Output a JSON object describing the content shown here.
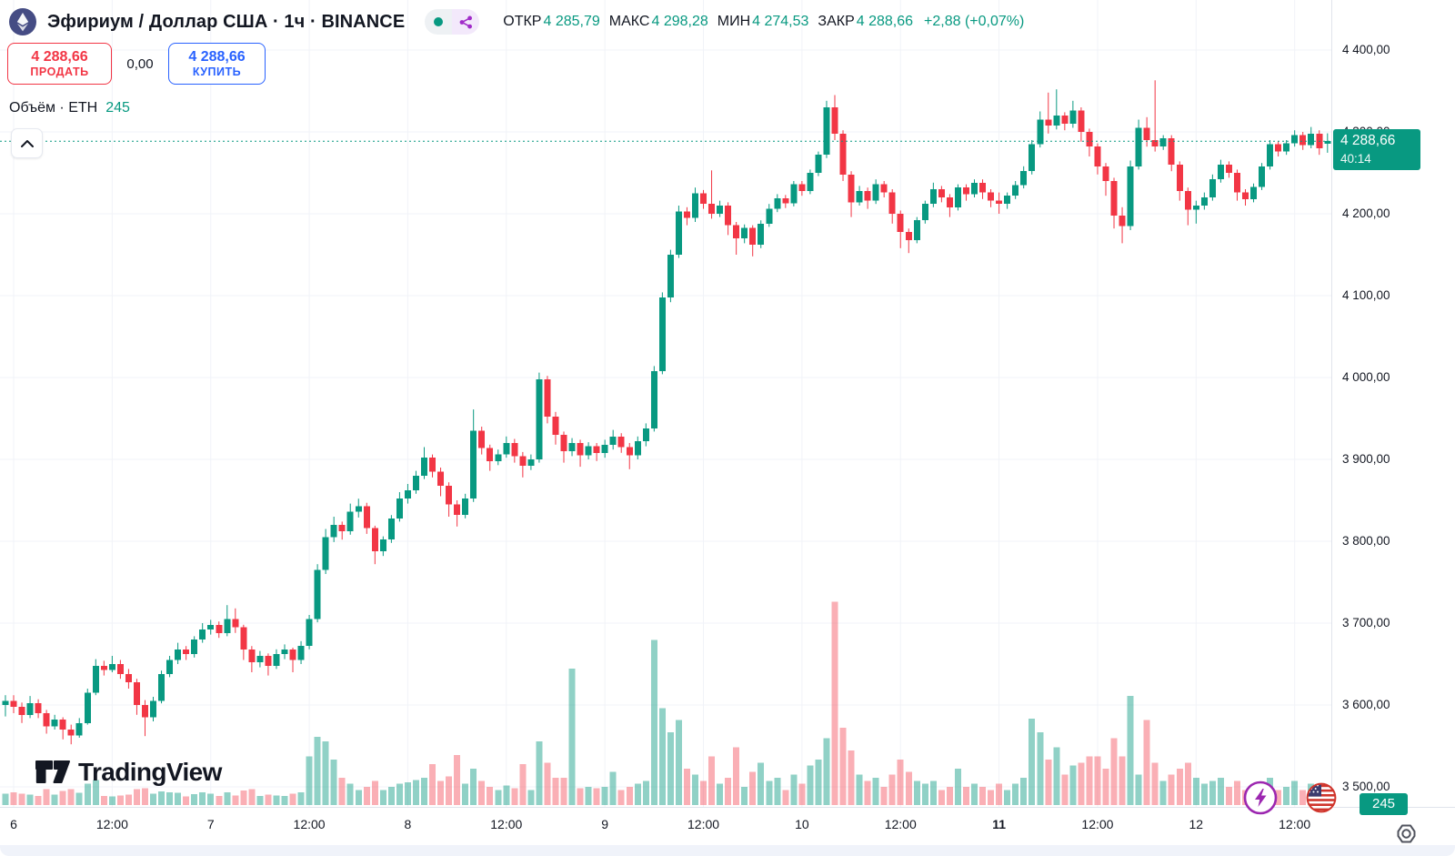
{
  "header": {
    "title": "Эфириум / Доллар США · 1ч · BINANCE",
    "ohlc": [
      {
        "label": "ОТКР",
        "value": "4 285,79"
      },
      {
        "label": "МАКС",
        "value": "4 298,28"
      },
      {
        "label": "МИН",
        "value": "4 274,53"
      },
      {
        "label": "ЗАКР",
        "value": "4 288,66"
      }
    ],
    "change": "+2,88 (+0,07%)"
  },
  "trade_panel": {
    "sell": {
      "price": "4 288,66",
      "label": "ПРОДАТЬ"
    },
    "spread": "0,00",
    "buy": {
      "price": "4 288,66",
      "label": "КУПИТЬ"
    }
  },
  "volume_legend": {
    "label": "Объём · ETH",
    "value": "245"
  },
  "price_badge": {
    "price": "4 288,66",
    "countdown": "40:14"
  },
  "volume_axis_badge": "245",
  "branding": {
    "name": "TradingView"
  },
  "colors": {
    "up": "#089981",
    "down": "#f23645",
    "vol_up": "rgba(8,153,129,0.45)",
    "vol_down": "rgba(242,54,69,0.40)",
    "buy_blue": "#2962ff",
    "sell_red": "#f23645",
    "grid": "#f1f3f8",
    "axis_text": "#131722",
    "purple": "#9c27b0"
  },
  "chart_data": {
    "type": "candlestick",
    "title": "Эфириум / Доллар США",
    "interval": "1ч",
    "exchange": "BINANCE",
    "price_axis": {
      "min": 3500,
      "max": 4400,
      "step": 100,
      "labels": [
        {
          "value": 4400,
          "text": "4 400,00"
        },
        {
          "value": 4300,
          "text": "4 300,00"
        },
        {
          "value": 4200,
          "text": "4 200,00"
        },
        {
          "value": 4100,
          "text": "4 100,00"
        },
        {
          "value": 4000,
          "text": "4 000,00"
        },
        {
          "value": 3900,
          "text": "3 900,00"
        },
        {
          "value": 3800,
          "text": "3 800,00"
        },
        {
          "value": 3700,
          "text": "3 700,00"
        },
        {
          "value": 3600,
          "text": "3 600,00"
        },
        {
          "value": 3500,
          "text": "3 500,00"
        }
      ]
    },
    "time_axis": {
      "labels": [
        {
          "text": "6",
          "index": 1,
          "bold": false
        },
        {
          "text": "12:00",
          "index": 13,
          "bold": false
        },
        {
          "text": "7",
          "index": 25,
          "bold": false
        },
        {
          "text": "12:00",
          "index": 37,
          "bold": false
        },
        {
          "text": "8",
          "index": 49,
          "bold": false
        },
        {
          "text": "12:00",
          "index": 61,
          "bold": false
        },
        {
          "text": "9",
          "index": 73,
          "bold": false
        },
        {
          "text": "12:00",
          "index": 85,
          "bold": false
        },
        {
          "text": "10",
          "index": 97,
          "bold": false
        },
        {
          "text": "12:00",
          "index": 109,
          "bold": false
        },
        {
          "text": "11",
          "index": 121,
          "bold": true
        },
        {
          "text": "12:00",
          "index": 133,
          "bold": false
        },
        {
          "text": "12",
          "index": 145,
          "bold": false
        },
        {
          "text": "12:00",
          "index": 157,
          "bold": false
        }
      ]
    },
    "current": {
      "price": 4288.66,
      "label": "4 288,66",
      "countdown": "40:14",
      "volume": 245
    },
    "candles": [
      [
        3600,
        3612,
        3586,
        3605,
        380
      ],
      [
        3605,
        3612,
        3590,
        3598,
        420
      ],
      [
        3598,
        3603,
        3578,
        3588,
        380
      ],
      [
        3588,
        3611,
        3584,
        3602,
        350
      ],
      [
        3602,
        3607,
        3584,
        3590,
        300
      ],
      [
        3590,
        3594,
        3565,
        3574,
        520
      ],
      [
        3574,
        3588,
        3570,
        3582,
        340
      ],
      [
        3582,
        3585,
        3558,
        3570,
        460
      ],
      [
        3570,
        3576,
        3552,
        3563,
        520
      ],
      [
        3563,
        3584,
        3560,
        3578,
        400
      ],
      [
        3578,
        3620,
        3576,
        3615,
        700
      ],
      [
        3615,
        3656,
        3612,
        3648,
        820
      ],
      [
        3648,
        3654,
        3636,
        3643,
        300
      ],
      [
        3643,
        3660,
        3640,
        3650,
        280
      ],
      [
        3650,
        3655,
        3632,
        3638,
        310
      ],
      [
        3638,
        3644,
        3620,
        3628,
        350
      ],
      [
        3628,
        3632,
        3588,
        3600,
        520
      ],
      [
        3600,
        3606,
        3562,
        3585,
        560
      ],
      [
        3585,
        3610,
        3580,
        3605,
        380
      ],
      [
        3605,
        3642,
        3602,
        3638,
        450
      ],
      [
        3638,
        3660,
        3634,
        3655,
        420
      ],
      [
        3655,
        3676,
        3650,
        3668,
        400
      ],
      [
        3668,
        3672,
        3655,
        3662,
        280
      ],
      [
        3662,
        3684,
        3658,
        3680,
        360
      ],
      [
        3680,
        3700,
        3676,
        3692,
        420
      ],
      [
        3692,
        3704,
        3686,
        3698,
        380
      ],
      [
        3698,
        3702,
        3682,
        3688,
        300
      ],
      [
        3688,
        3722,
        3684,
        3705,
        420
      ],
      [
        3705,
        3718,
        3688,
        3695,
        310
      ],
      [
        3695,
        3698,
        3655,
        3668,
        480
      ],
      [
        3668,
        3672,
        3640,
        3652,
        520
      ],
      [
        3652,
        3666,
        3646,
        3660,
        300
      ],
      [
        3660,
        3663,
        3636,
        3648,
        340
      ],
      [
        3648,
        3668,
        3644,
        3662,
        320
      ],
      [
        3662,
        3674,
        3656,
        3668,
        300
      ],
      [
        3668,
        3670,
        3640,
        3655,
        380
      ],
      [
        3655,
        3678,
        3650,
        3672,
        420
      ],
      [
        3672,
        3710,
        3668,
        3705,
        1600
      ],
      [
        3705,
        3772,
        3701,
        3765,
        2250
      ],
      [
        3765,
        3815,
        3760,
        3805,
        2100
      ],
      [
        3805,
        3830,
        3799,
        3820,
        1500
      ],
      [
        3820,
        3824,
        3802,
        3812,
        900
      ],
      [
        3812,
        3846,
        3808,
        3836,
        700
      ],
      [
        3836,
        3852,
        3829,
        3843,
        500
      ],
      [
        3843,
        3847,
        3809,
        3816,
        600
      ],
      [
        3816,
        3819,
        3772,
        3788,
        800
      ],
      [
        3788,
        3806,
        3782,
        3802,
        500
      ],
      [
        3802,
        3832,
        3798,
        3828,
        600
      ],
      [
        3828,
        3860,
        3824,
        3852,
        700
      ],
      [
        3852,
        3870,
        3846,
        3862,
        750
      ],
      [
        3862,
        3886,
        3858,
        3880,
        820
      ],
      [
        3880,
        3915,
        3876,
        3902,
        900
      ],
      [
        3902,
        3906,
        3878,
        3885,
        1350
      ],
      [
        3885,
        3890,
        3855,
        3868,
        800
      ],
      [
        3868,
        3872,
        3830,
        3845,
        950
      ],
      [
        3845,
        3850,
        3818,
        3832,
        1650
      ],
      [
        3832,
        3858,
        3828,
        3852,
        700
      ],
      [
        3852,
        3961,
        3848,
        3935,
        1200
      ],
      [
        3935,
        3940,
        3906,
        3914,
        800
      ],
      [
        3914,
        3918,
        3886,
        3898,
        600
      ],
      [
        3898,
        3912,
        3893,
        3906,
        500
      ],
      [
        3906,
        3928,
        3902,
        3920,
        650
      ],
      [
        3920,
        3925,
        3896,
        3904,
        550
      ],
      [
        3904,
        3909,
        3878,
        3892,
        1350
      ],
      [
        3892,
        3906,
        3887,
        3900,
        500
      ],
      [
        3900,
        4006,
        3896,
        3998,
        2100
      ],
      [
        3998,
        4002,
        3944,
        3952,
        1400
      ],
      [
        3952,
        3958,
        3918,
        3930,
        900
      ],
      [
        3930,
        3934,
        3896,
        3910,
        900
      ],
      [
        3910,
        3926,
        3904,
        3920,
        4500
      ],
      [
        3920,
        3924,
        3891,
        3905,
        550
      ],
      [
        3905,
        3921,
        3900,
        3916,
        600
      ],
      [
        3916,
        3920,
        3898,
        3908,
        550
      ],
      [
        3908,
        3924,
        3902,
        3918,
        600
      ],
      [
        3918,
        3936,
        3912,
        3928,
        1100
      ],
      [
        3928,
        3932,
        3908,
        3915,
        500
      ],
      [
        3915,
        3920,
        3888,
        3905,
        600
      ],
      [
        3905,
        3928,
        3900,
        3922,
        700
      ],
      [
        3922,
        3944,
        3916,
        3938,
        800
      ],
      [
        3938,
        4014,
        3934,
        4008,
        5450
      ],
      [
        4008,
        4104,
        4004,
        4098,
        3200
      ],
      [
        4098,
        4156,
        4092,
        4150,
        2400
      ],
      [
        4150,
        4210,
        4146,
        4203,
        2800
      ],
      [
        4203,
        4208,
        4186,
        4195,
        1200
      ],
      [
        4195,
        4232,
        4190,
        4225,
        1000
      ],
      [
        4225,
        4229,
        4206,
        4212,
        800
      ],
      [
        4212,
        4253,
        4194,
        4200,
        1600
      ],
      [
        4200,
        4216,
        4196,
        4210,
        700
      ],
      [
        4210,
        4214,
        4174,
        4186,
        900
      ],
      [
        4186,
        4190,
        4150,
        4170,
        1900
      ],
      [
        4170,
        4187,
        4164,
        4183,
        600
      ],
      [
        4183,
        4186,
        4148,
        4162,
        1100
      ],
      [
        4162,
        4192,
        4158,
        4188,
        1400
      ],
      [
        4188,
        4212,
        4184,
        4206,
        800
      ],
      [
        4206,
        4224,
        4202,
        4219,
        900
      ],
      [
        4219,
        4223,
        4207,
        4213,
        500
      ],
      [
        4213,
        4240,
        4209,
        4236,
        1000
      ],
      [
        4236,
        4240,
        4222,
        4228,
        700
      ],
      [
        4228,
        4254,
        4224,
        4250,
        1300
      ],
      [
        4250,
        4276,
        4246,
        4272,
        1500
      ],
      [
        4272,
        4338,
        4268,
        4330,
        2200
      ],
      [
        4330,
        4345,
        4290,
        4298,
        6700
      ],
      [
        4298,
        4302,
        4240,
        4248,
        2550
      ],
      [
        4248,
        4252,
        4196,
        4214,
        1800
      ],
      [
        4214,
        4234,
        4210,
        4228,
        1000
      ],
      [
        4228,
        4232,
        4206,
        4216,
        800
      ],
      [
        4216,
        4242,
        4212,
        4236,
        900
      ],
      [
        4236,
        4240,
        4220,
        4226,
        600
      ],
      [
        4226,
        4230,
        4188,
        4200,
        1000
      ],
      [
        4200,
        4204,
        4158,
        4178,
        1500
      ],
      [
        4178,
        4182,
        4152,
        4168,
        1100
      ],
      [
        4168,
        4196,
        4164,
        4192,
        800
      ],
      [
        4192,
        4216,
        4188,
        4212,
        700
      ],
      [
        4212,
        4238,
        4208,
        4230,
        800
      ],
      [
        4230,
        4234,
        4214,
        4220,
        500
      ],
      [
        4220,
        4224,
        4196,
        4208,
        600
      ],
      [
        4208,
        4236,
        4204,
        4232,
        1200
      ],
      [
        4232,
        4236,
        4216,
        4224,
        600
      ],
      [
        4224,
        4242,
        4220,
        4238,
        700
      ],
      [
        4238,
        4242,
        4218,
        4226,
        600
      ],
      [
        4226,
        4230,
        4208,
        4216,
        500
      ],
      [
        4216,
        4226,
        4200,
        4212,
        700
      ],
      [
        4212,
        4226,
        4206,
        4222,
        500
      ],
      [
        4222,
        4240,
        4218,
        4235,
        700
      ],
      [
        4235,
        4258,
        4231,
        4252,
        900
      ],
      [
        4252,
        4290,
        4248,
        4285,
        2850
      ],
      [
        4285,
        4325,
        4281,
        4315,
        2400
      ],
      [
        4315,
        4348,
        4298,
        4308,
        1500
      ],
      [
        4308,
        4352,
        4303,
        4320,
        1900
      ],
      [
        4320,
        4324,
        4302,
        4310,
        1000
      ],
      [
        4310,
        4338,
        4305,
        4326,
        1300
      ],
      [
        4326,
        4330,
        4288,
        4300,
        1400
      ],
      [
        4300,
        4304,
        4270,
        4282,
        1600
      ],
      [
        4282,
        4286,
        4248,
        4258,
        1600
      ],
      [
        4258,
        4262,
        4222,
        4240,
        1200
      ],
      [
        4240,
        4244,
        4182,
        4198,
        2200
      ],
      [
        4198,
        4208,
        4164,
        4185,
        1600
      ],
      [
        4185,
        4265,
        4180,
        4258,
        3600
      ],
      [
        4258,
        4315,
        4254,
        4305,
        1000
      ],
      [
        4305,
        4318,
        4282,
        4290,
        2800
      ],
      [
        4290,
        4363,
        4276,
        4282,
        1400
      ],
      [
        4282,
        4296,
        4278,
        4292,
        800
      ],
      [
        4292,
        4296,
        4252,
        4260,
        1000
      ],
      [
        4260,
        4264,
        4216,
        4228,
        1200
      ],
      [
        4228,
        4232,
        4186,
        4205,
        1400
      ],
      [
        4205,
        4216,
        4188,
        4210,
        900
      ],
      [
        4210,
        4226,
        4205,
        4220,
        700
      ],
      [
        4220,
        4248,
        4216,
        4242,
        800
      ],
      [
        4242,
        4266,
        4238,
        4260,
        900
      ],
      [
        4260,
        4264,
        4244,
        4250,
        600
      ],
      [
        4250,
        4254,
        4216,
        4226,
        800
      ],
      [
        4226,
        4230,
        4210,
        4218,
        500
      ],
      [
        4218,
        4237,
        4214,
        4233,
        600
      ],
      [
        4233,
        4262,
        4229,
        4258,
        700
      ],
      [
        4258,
        4290,
        4254,
        4285,
        900
      ],
      [
        4285,
        4289,
        4270,
        4276,
        500
      ],
      [
        4276,
        4290,
        4272,
        4286,
        600
      ],
      [
        4286,
        4302,
        4282,
        4296,
        800
      ],
      [
        4296,
        4300,
        4278,
        4284,
        500
      ],
      [
        4284,
        4306,
        4280,
        4298,
        700
      ],
      [
        4298,
        4302,
        4272,
        4280,
        600
      ],
      [
        4285.79,
        4298.28,
        4274.53,
        4288.66,
        245
      ]
    ]
  }
}
